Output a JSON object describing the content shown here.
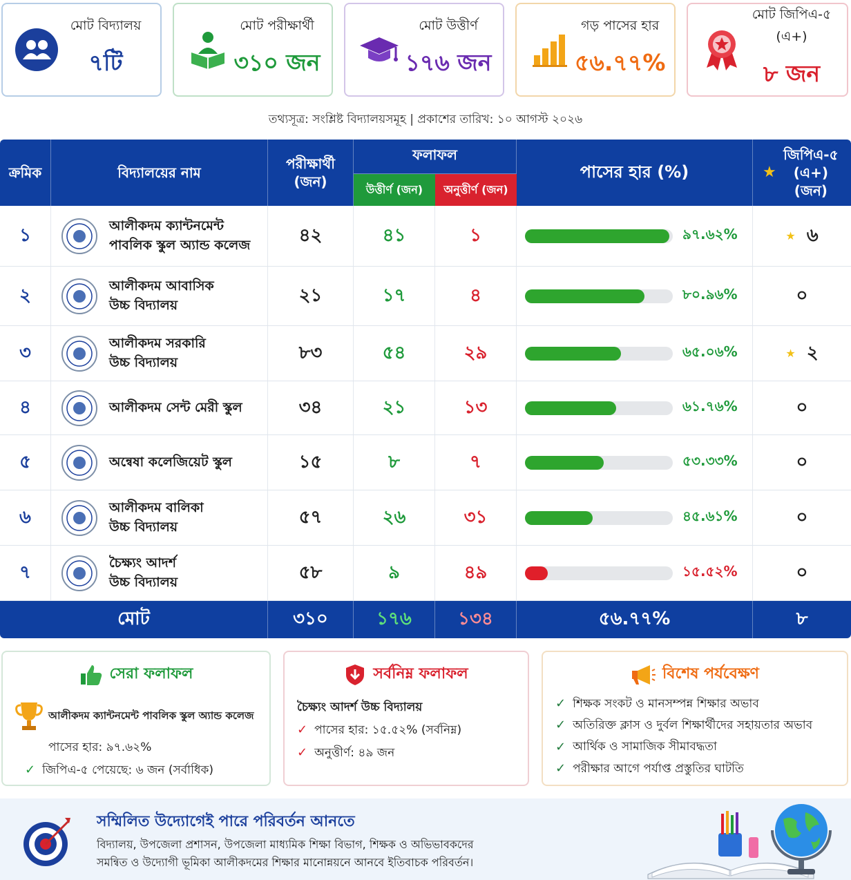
{
  "summary_cards": [
    {
      "label": "মোট বিদ্যালয়",
      "value": "৭টি",
      "icon": "users-icon",
      "color": "#1b3f9c"
    },
    {
      "label": "মোট পরীক্ষার্থী",
      "value": "৩১০ জন",
      "icon": "student-reading-icon",
      "color": "#1f9a3b"
    },
    {
      "label": "মোট উত্তীর্ণ",
      "value": "১৭৬ জন",
      "icon": "graduation-cap-icon",
      "color": "#6a2bb0"
    },
    {
      "label": "গড় পাসের হার",
      "value": "৫৬.৭৭%",
      "icon": "bar-chart-icon",
      "color": "#ef6b12"
    },
    {
      "label": "মোট জিপিএ-৫ (এ+)",
      "value": "৮ জন",
      "icon": "award-medal-icon",
      "color": "#d9222e"
    }
  ],
  "source_line": "তথ্যসূত্র: সংশ্লিষ্ট বিদ্যালয়সমূহ | প্রকাশের তারিখ: ১০ আগস্ট ২০২৬",
  "table": {
    "headers": {
      "serial": "ক্রমিক",
      "school": "বিদ্যালয়ের নাম",
      "examinees": "পরীক্ষার্থী (জন)",
      "result": "ফলাফল",
      "passed": "উত্তীর্ণ (জন)",
      "failed": "অনুত্তীর্ণ (জন)",
      "pass_rate": "পাসের হার (%)",
      "gpa5": "জিপিএ-৫ (এ+) (জন)"
    },
    "total": {
      "label": "মোট",
      "examinees": "৩১০",
      "passed": "১৭৬",
      "failed": "১৩৪",
      "pass_rate": "৫৬.৭৭%",
      "gpa5": "৮"
    }
  },
  "chart_data": {
    "type": "table",
    "pass_rate_range": [
      0,
      100
    ],
    "rows": [
      {
        "serial": "১",
        "school_line1": "আলীকদম ক্যান্টনমেন্ট",
        "school_line2": "পাবলিক স্কুল অ্যান্ড কলেজ",
        "examinees_label": "৪২",
        "passed_label": "৪১",
        "failed_label": "১",
        "pass_rate": 97.62,
        "pass_rate_label": "৯৭.৬২%",
        "gpa5_label": "৬",
        "gpa5_star": true,
        "bar_color": "#2ea52e"
      },
      {
        "serial": "২",
        "school_line1": "আলীকদম আবাসিক",
        "school_line2": "উচ্চ বিদ্যালয়",
        "examinees_label": "২১",
        "passed_label": "১৭",
        "failed_label": "৪",
        "pass_rate": 80.96,
        "pass_rate_label": "৮০.৯৬%",
        "gpa5_label": "০",
        "gpa5_star": false,
        "bar_color": "#2ea52e"
      },
      {
        "serial": "৩",
        "school_line1": "আলীকদম সরকারি",
        "school_line2": "উচ্চ বিদ্যালয়",
        "examinees_label": "৮৩",
        "passed_label": "৫৪",
        "failed_label": "২৯",
        "pass_rate": 65.06,
        "pass_rate_label": "৬৫.০৬%",
        "gpa5_label": "২",
        "gpa5_star": true,
        "bar_color": "#2ea52e"
      },
      {
        "serial": "৪",
        "school_line1": "আলীকদম সেন্ট মেরী স্কুল",
        "school_line2": "",
        "examinees_label": "৩৪",
        "passed_label": "২১",
        "failed_label": "১৩",
        "pass_rate": 61.76,
        "pass_rate_label": "৬১.৭৬%",
        "gpa5_label": "০",
        "gpa5_star": false,
        "bar_color": "#2ea52e"
      },
      {
        "serial": "৫",
        "school_line1": "অন্বেষা কলেজিয়েট স্কুল",
        "school_line2": "",
        "examinees_label": "১৫",
        "passed_label": "৮",
        "failed_label": "৭",
        "pass_rate": 53.33,
        "pass_rate_label": "৫৩.৩৩%",
        "gpa5_label": "০",
        "gpa5_star": false,
        "bar_color": "#2ea52e"
      },
      {
        "serial": "৬",
        "school_line1": "আলীকদম বালিকা",
        "school_line2": "উচ্চ বিদ্যালয়",
        "examinees_label": "৫৭",
        "passed_label": "২৬",
        "failed_label": "৩১",
        "pass_rate": 45.61,
        "pass_rate_label": "৪৫.৬১%",
        "gpa5_label": "০",
        "gpa5_star": false,
        "bar_color": "#2ea52e"
      },
      {
        "serial": "৭",
        "school_line1": "চৈক্ষ্যং আদর্শ",
        "school_line2": "উচ্চ বিদ্যালয়",
        "examinees_label": "৫৮",
        "passed_label": "৯",
        "failed_label": "৪৯",
        "pass_rate": 15.52,
        "pass_rate_label": "১৫.৫২%",
        "gpa5_label": "০",
        "gpa5_star": false,
        "bar_color": "#e01f2a"
      }
    ]
  },
  "panels": {
    "best": {
      "title": "সেরা ফলাফল",
      "school": "আলীকদম ক্যান্টনমেন্ট পাবলিক স্কুল অ্যান্ড কলেজ",
      "pass_rate": "পাসের হার: ৯৭.৬২%",
      "gpa5": "জিপিএ-৫ পেয়েছে: ৬ জন (সর্বাধিক)",
      "color": "#1f9a3b"
    },
    "lowest": {
      "title": "সর্বনিম্ন ফলাফল",
      "school": "চৈক্ষ্যং আদর্শ উচ্চ বিদ্যালয়",
      "pass_rate": "পাসের হার: ১৫.৫২% (সর্বনিম্ন)",
      "failed": "অনুত্তীর্ণ: ৪৯ জন",
      "color": "#d9222e"
    },
    "observation": {
      "title": "বিশেষ পর্যবেক্ষণ",
      "items": [
        "শিক্ষক সংকট ও মানসম্পন্ন শিক্ষার অভাব",
        "অতিরিক্ত ক্লাস ও দুর্বল শিক্ষার্থীদের সহায়তার অভাব",
        "আর্থিক ও সামাজিক সীমাবদ্ধতা",
        "পরীক্ষার আগে পর্যাপ্ত প্রস্তুতির ঘাটতি"
      ],
      "color": "#ef6b12"
    }
  },
  "banner": {
    "title": "সম্মিলিত উদ্যোগেই পারে পরিবর্তন আনতে",
    "line1": "বিদ্যালয়, উপজেলা প্রশাসন, উপজেলা মাধ্যমিক শিক্ষা বিভাগ, শিক্ষক ও অভিভাবকদের",
    "line2": "সমন্বিত ও উদ্যোগী ভূমিকা আলীকদমের শিক্ষার মানোন্নয়নে আনবে ইতিবাচক পরিবর্তন।"
  }
}
